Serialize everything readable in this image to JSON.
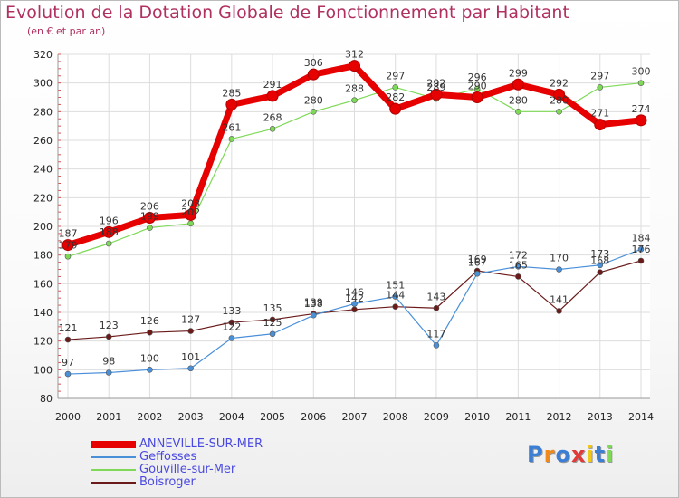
{
  "chart_data": {
    "type": "line",
    "title": "Evolution de la Dotation Globale de Fonctionnement par Habitant",
    "subtitle": "(en € et par an)",
    "xlabel": "",
    "ylabel": "",
    "ylim": [
      80,
      320
    ],
    "yticks": [
      80,
      100,
      120,
      140,
      160,
      180,
      200,
      220,
      240,
      260,
      280,
      300,
      320
    ],
    "categories": [
      "2000",
      "2001",
      "2002",
      "2003",
      "2004",
      "2005",
      "2006",
      "2007",
      "2008",
      "2009",
      "2010",
      "2011",
      "2012",
      "2013",
      "2014"
    ],
    "series": [
      {
        "name": "Boisroger",
        "color": "#6b1a1a",
        "values": [
          121,
          123,
          126,
          127,
          133,
          135,
          139,
          142,
          144,
          143,
          169,
          165,
          141,
          168,
          176
        ]
      },
      {
        "name": "Geffosses",
        "color": "#4a90d9",
        "values": [
          97,
          98,
          100,
          101,
          122,
          125,
          138,
          146,
          151,
          117,
          167,
          172,
          170,
          173,
          184
        ]
      },
      {
        "name": "Gouville-sur-Mer",
        "color": "#7ed957",
        "values": [
          179,
          188,
          199,
          202,
          261,
          268,
          280,
          288,
          297,
          289,
          296,
          280,
          280,
          297,
          300
        ]
      },
      {
        "name": "ANNEVILLE-SUR-MER",
        "color": "#e60000",
        "values": [
          187,
          196,
          206,
          208,
          285,
          291,
          306,
          312,
          282,
          292,
          290,
          299,
          292,
          271,
          274
        ]
      }
    ],
    "legend": [
      "ANNEVILLE-SUR-MER",
      "Geffosses",
      "Gouville-sur-Mer",
      "Boisroger"
    ],
    "grid": true
  },
  "brand": {
    "letters": [
      "P",
      "r",
      "o",
      "x",
      "i",
      "t",
      "i"
    ],
    "colors": [
      "#3a7fd5",
      "#f08a1c",
      "#3a7fd5",
      "#e23a3a",
      "#f0c81c",
      "#3a7fd5",
      "#7ed957"
    ]
  }
}
